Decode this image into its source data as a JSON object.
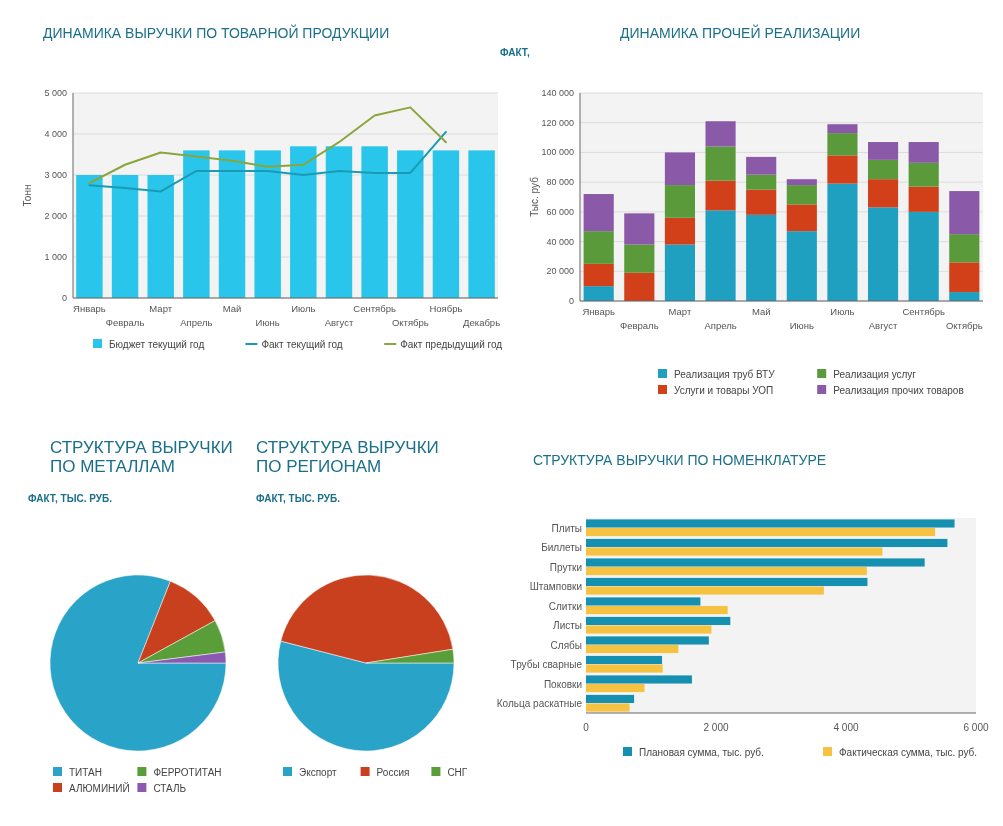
{
  "chart_data": [
    {
      "type": "bar",
      "title": "ДИНАМИКА ВЫРУЧКИ ПО ТОВАРНОЙ ПРОДУКЦИИ",
      "ylabel": "Тонн",
      "categories": [
        "Январь",
        "Февраль",
        "Март",
        "Апрель",
        "Май",
        "Июнь",
        "Июль",
        "Август",
        "Сентябрь",
        "Октябрь",
        "Ноябрь",
        "Декабрь"
      ],
      "series": [
        {
          "name": "Бюджет текущий год",
          "type": "bar",
          "color": "#29c5ea",
          "values": [
            3000,
            3000,
            3000,
            3600,
            3600,
            3600,
            3700,
            3700,
            3700,
            3600,
            3600,
            3600
          ]
        },
        {
          "name": "Факт текущий год",
          "type": "line",
          "color": "#1a9bb5",
          "values": [
            2750,
            2680,
            2600,
            3100,
            3100,
            3100,
            3000,
            3100,
            3050,
            3050,
            4050,
            null
          ]
        },
        {
          "name": "Факт предыдущий год",
          "type": "line",
          "color": "#8aa63a",
          "values": [
            2800,
            3250,
            3550,
            3450,
            3350,
            3200,
            3250,
            3800,
            4450,
            4650,
            3800,
            null
          ]
        }
      ],
      "ylim": [
        0,
        5000
      ],
      "yticks": [
        0,
        {
          "value": 1000,
          "label": "1 000"
        },
        {
          "value": 2000,
          "label": "2 000"
        },
        {
          "value": 3000,
          "label": "3 000"
        },
        {
          "value": 4000,
          "label": "4 000"
        },
        {
          "value": 5000,
          "label": "5 000"
        }
      ],
      "grid": "y",
      "legend": "bottom"
    },
    {
      "type": "bar",
      "title": "ДИНАМИКА ПРОЧЕЙ РЕАЛИЗАЦИИ",
      "subtitle": "ФАКТ,",
      "ylabel": "Тыс. руб",
      "stacked": true,
      "categories": [
        "Январь",
        "Февраль",
        "Март",
        "Апрель",
        "Май",
        "Июнь",
        "Июль",
        "Август",
        "Сентябрь",
        "Октябрь"
      ],
      "series": [
        {
          "name": "Реализация труб ВТУ",
          "color": "#1fa0c0",
          "values": [
            10000,
            0,
            38000,
            61000,
            58000,
            47000,
            79000,
            63000,
            60000,
            6000
          ]
        },
        {
          "name": "Услуги и товары УОП",
          "color": "#d2401a",
          "values": [
            15000,
            19000,
            18000,
            20000,
            17000,
            18000,
            19000,
            19000,
            17000,
            20000
          ]
        },
        {
          "name": "Реализация услуг",
          "color": "#5a9a3a",
          "values": [
            22000,
            19000,
            22000,
            23000,
            10000,
            13000,
            15000,
            13000,
            16000,
            19000
          ]
        },
        {
          "name": "Реализация прочих товаров",
          "color": "#8a5aa8",
          "values": [
            25000,
            21000,
            22000,
            17000,
            12000,
            4000,
            6000,
            12000,
            14000,
            29000
          ]
        }
      ],
      "ylim": [
        0,
        140000
      ],
      "yticks": [
        0,
        {
          "value": 20000,
          "label": "20 000"
        },
        {
          "value": 40000,
          "label": "40 000"
        },
        {
          "value": 60000,
          "label": "60 000"
        },
        {
          "value": 80000,
          "label": "80 000"
        },
        {
          "value": 100000,
          "label": "100 000"
        },
        {
          "value": 120000,
          "label": "120 000"
        },
        {
          "value": 140000,
          "label": "140 000"
        }
      ],
      "grid": "y",
      "legend": "bottom"
    },
    {
      "type": "pie",
      "title": "СТРУКТУРА ВЫРУЧКИ ПО МЕТАЛЛАМ",
      "subtitle": "ФАКТ, ТЫС. РУБ.",
      "categories": [
        "ТИТАН",
        "АЛЮМИНИЙ",
        "ФЕРРОТИТАН",
        "СТАЛЬ"
      ],
      "values": [
        81,
        11,
        6,
        2
      ],
      "colors": [
        "#2aa3c8",
        "#c8401e",
        "#5a9e3a",
        "#8a5ab0"
      ],
      "legend": "bottom"
    },
    {
      "type": "pie",
      "title": "СТРУКТУРА ВЫРУЧКИ ПО РЕГИОНАМ",
      "subtitle": "ФАКТ, ТЫС. РУБ.",
      "categories": [
        "Экспорт",
        "Россия",
        "СНГ"
      ],
      "values": [
        54,
        43.5,
        2.5
      ],
      "colors": [
        "#2aa3c8",
        "#c8401e",
        "#5a9e3a"
      ],
      "legend": "bottom"
    },
    {
      "type": "bar",
      "title": "СТРУКТУРА ВЫРУЧКИ ПО НОМЕНКЛАТУРЕ",
      "orientation": "horizontal",
      "categories": [
        "Плиты",
        "Биллеты",
        "Прутки",
        "Штамповки",
        "Слитки",
        "Листы",
        "Слябы",
        "Трубы сварные",
        "Поковки",
        "Кольца раскатные"
      ],
      "series": [
        {
          "name": "Плановая сумма, тыс. руб.",
          "color": "#1590b0",
          "values": [
            5670,
            5560,
            5210,
            4330,
            1760,
            2220,
            1890,
            1170,
            1630,
            740
          ]
        },
        {
          "name": "Фактическая сумма, тыс. руб.",
          "color": "#f5c242",
          "values": [
            5370,
            4560,
            4320,
            3660,
            2180,
            1930,
            1420,
            1180,
            900,
            670
          ]
        }
      ],
      "xlim": [
        0,
        6000
      ],
      "xticks": [
        0,
        {
          "value": 2000,
          "label": "2 000"
        },
        {
          "value": 4000,
          "label": "4 000"
        },
        {
          "value": 6000,
          "label": "6 000"
        }
      ],
      "legend": "bottom"
    }
  ]
}
